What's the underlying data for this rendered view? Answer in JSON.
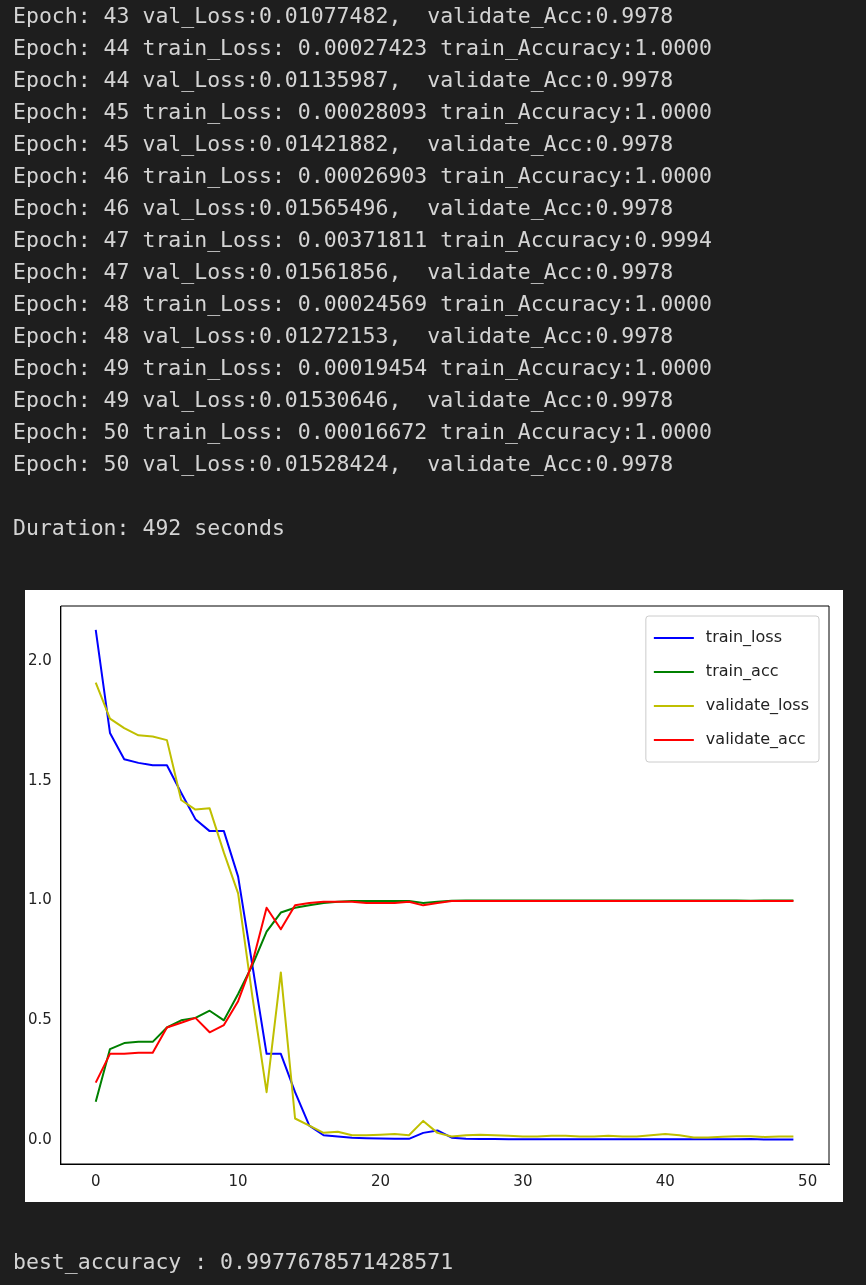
{
  "chart_data": {
    "type": "line",
    "annotations": [
      "Epoch: 43 val_Loss:0.01077482,  validate_Acc:0.9978",
      "Epoch: 44 train_Loss: 0.00027423 train_Accuracy:1.0000",
      "Epoch: 44 val_Loss:0.01135987,  validate_Acc:0.9978",
      "Epoch: 45 train_Loss: 0.00028093 train_Accuracy:1.0000",
      "Epoch: 45 val_Loss:0.01421882,  validate_Acc:0.9978",
      "Epoch: 46 train_Loss: 0.00026903 train_Accuracy:1.0000",
      "Epoch: 46 val_Loss:0.01565496,  validate_Acc:0.9978",
      "Epoch: 47 train_Loss: 0.00371811 train_Accuracy:0.9994",
      "Epoch: 47 val_Loss:0.01561856,  validate_Acc:0.9978",
      "Epoch: 48 train_Loss: 0.00024569 train_Accuracy:1.0000",
      "Epoch: 48 val_Loss:0.01272153,  validate_Acc:0.9978",
      "Epoch: 49 train_Loss: 0.00019454 train_Accuracy:1.0000",
      "Epoch: 49 val_Loss:0.01530646,  validate_Acc:0.9978",
      "Epoch: 50 train_Loss: 0.00016672 train_Accuracy:1.0000",
      "Epoch: 50 val_Loss:0.01528424,  validate_Acc:0.9978",
      "Duration: 492 seconds",
      "best_accuracy : 0.9977678571428571"
    ],
    "x": [
      0,
      1,
      2,
      3,
      4,
      5,
      6,
      7,
      8,
      9,
      10,
      11,
      12,
      13,
      14,
      15,
      16,
      17,
      18,
      19,
      20,
      21,
      22,
      23,
      24,
      25,
      26,
      27,
      28,
      29,
      30,
      31,
      32,
      33,
      34,
      35,
      36,
      37,
      38,
      39,
      40,
      41,
      42,
      43,
      44,
      45,
      46,
      47,
      48,
      49
    ],
    "series": [
      {
        "name": "train_loss",
        "color": "#0000ff",
        "values": [
          2.13,
          1.7,
          1.59,
          1.575,
          1.565,
          1.565,
          1.45,
          1.34,
          1.29,
          1.29,
          1.1,
          0.73,
          0.36,
          0.36,
          0.2,
          0.06,
          0.02,
          0.015,
          0.01,
          0.008,
          0.006,
          0.005,
          0.005,
          0.03,
          0.04,
          0.01,
          0.005,
          0.004,
          0.004,
          0.003,
          0.003,
          0.003,
          0.003,
          0.003,
          0.003,
          0.003,
          0.003,
          0.003,
          0.003,
          0.003,
          0.003,
          0.003,
          0.003,
          0.003,
          0.003,
          0.003,
          0.004,
          0.002,
          0.002,
          0.002
        ]
      },
      {
        "name": "train_acc",
        "color": "#008000",
        "values": [
          0.16,
          0.38,
          0.405,
          0.41,
          0.41,
          0.47,
          0.5,
          0.51,
          0.54,
          0.5,
          0.61,
          0.73,
          0.87,
          0.95,
          0.97,
          0.98,
          0.99,
          0.995,
          0.998,
          0.998,
          0.998,
          0.998,
          0.998,
          0.99,
          0.995,
          0.999,
          1,
          1,
          1,
          1,
          1,
          1,
          1,
          1,
          1,
          1,
          1,
          1,
          1,
          1,
          1,
          1,
          1,
          1,
          1,
          1,
          0.999,
          1,
          1,
          1
        ]
      },
      {
        "name": "validate_loss",
        "color": "#bfbf00",
        "values": [
          1.91,
          1.76,
          1.72,
          1.69,
          1.685,
          1.67,
          1.42,
          1.38,
          1.385,
          1.2,
          1.03,
          0.6,
          0.2,
          0.7,
          0.09,
          0.06,
          0.03,
          0.035,
          0.02,
          0.02,
          0.022,
          0.025,
          0.02,
          0.08,
          0.03,
          0.015,
          0.02,
          0.022,
          0.02,
          0.018,
          0.015,
          0.015,
          0.018,
          0.018,
          0.015,
          0.015,
          0.018,
          0.015,
          0.015,
          0.02,
          0.025,
          0.02,
          0.011,
          0.011,
          0.014,
          0.016,
          0.016,
          0.013,
          0.015,
          0.015
        ]
      },
      {
        "name": "validate_acc",
        "color": "#ff0000",
        "values": [
          0.24,
          0.36,
          0.36,
          0.365,
          0.365,
          0.47,
          0.49,
          0.51,
          0.45,
          0.48,
          0.58,
          0.74,
          0.97,
          0.88,
          0.98,
          0.99,
          0.995,
          0.995,
          0.995,
          0.99,
          0.99,
          0.99,
          0.995,
          0.98,
          0.99,
          0.998,
          0.998,
          0.998,
          0.998,
          0.998,
          0.998,
          0.998,
          0.998,
          0.998,
          0.998,
          0.998,
          0.998,
          0.998,
          0.998,
          0.998,
          0.998,
          0.998,
          0.998,
          0.998,
          0.998,
          0.998,
          0.998,
          0.998,
          0.998,
          0.998
        ]
      }
    ],
    "xlim": [
      -2.45,
      51.5
    ],
    "xticks": [
      0,
      10,
      20,
      30,
      40,
      50
    ],
    "ylim": [
      -0.1,
      2.23
    ],
    "yticks": [
      {
        "value": 0,
        "label": "0.0"
      },
      0.5,
      {
        "value": 1,
        "label": "1.0"
      },
      1.5,
      {
        "value": 2,
        "label": "2.0"
      }
    ],
    "grid": false,
    "legend": "top right"
  }
}
